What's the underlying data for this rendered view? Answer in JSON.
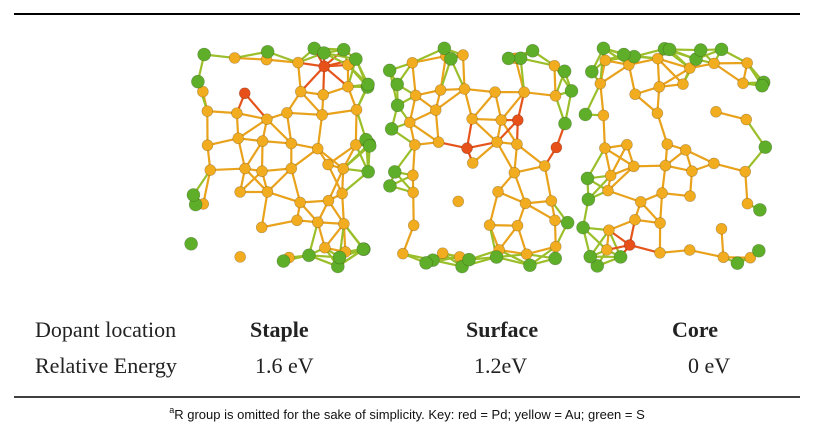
{
  "table": {
    "rows": [
      [
        "Dopant location",
        "Staple",
        "Surface",
        "Core"
      ],
      [
        "Relative Energy",
        "1.6 eV",
        "1.2eV",
        "0 eV"
      ]
    ]
  },
  "footnote": {
    "marker": "a",
    "text": "R group is omitted for the sake of simplicity. Key: red = Pd; yellow = Au; green = S"
  }
}
